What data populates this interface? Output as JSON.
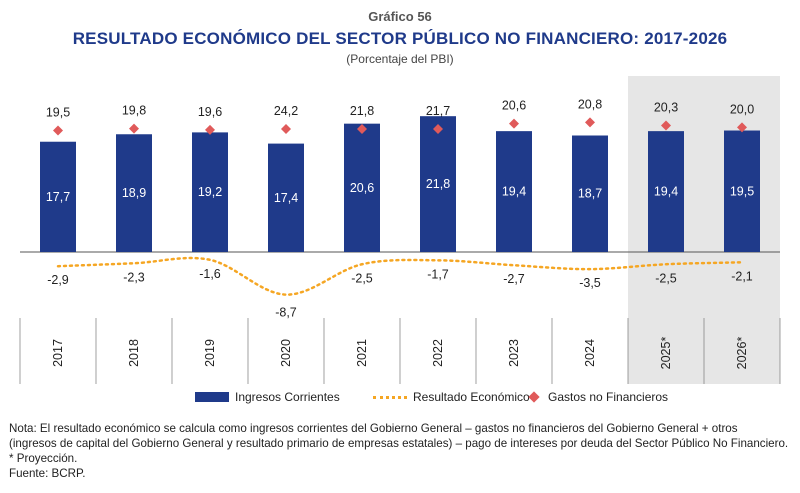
{
  "header": {
    "kicker": "Gráfico 56",
    "title": "RESULTADO ECONÓMICO DEL SECTOR PÚBLICO NO FINANCIERO: 2017-2026",
    "subtitle": "(Porcentaje del PBI)"
  },
  "legend": {
    "bars": "Ingresos Corrientes",
    "line": "Resultado Económico",
    "diamonds": "Gastos no Financieros"
  },
  "notes": [
    "Nota: El resultado económico se calcula como ingresos corrientes del Gobierno General – gastos no financieros del Gobierno General + otros",
    "(ingresos de capital del Gobierno General y resultado primario de empresas estatales) – pago de intereses por deuda del Sector Público No Financiero.",
    "* Proyección.",
    "Fuente: BCRP."
  ],
  "colors": {
    "bars": "#1f3a8a",
    "line": "#f5a623",
    "diamonds": "#e05a5a",
    "projection_shade": "#e6e6e6"
  },
  "chart_data": {
    "type": "bar",
    "categories": [
      "2017",
      "2018",
      "2019",
      "2020",
      "2021",
      "2022",
      "2023",
      "2024",
      "2025*",
      "2026*"
    ],
    "projected_categories": [
      "2025*",
      "2026*"
    ],
    "series": [
      {
        "name": "Ingresos Corrientes",
        "type": "bar",
        "values": [
          17.7,
          18.9,
          19.2,
          17.4,
          20.6,
          21.8,
          19.4,
          18.7,
          19.4,
          19.5
        ],
        "labels": [
          "17,7",
          "18,9",
          "19,2",
          "17,4",
          "20,6",
          "21,8",
          "19,4",
          "18,7",
          "19,4",
          "19,5"
        ]
      },
      {
        "name": "Gastos no Financieros",
        "type": "scatter",
        "values": [
          19.5,
          19.8,
          19.6,
          24.2,
          21.8,
          21.7,
          20.6,
          20.8,
          20.3,
          20.0
        ],
        "labels": [
          "19,5",
          "19,8",
          "19,6",
          "24,2",
          "21,8",
          "21,7",
          "20,6",
          "20,8",
          "20,3",
          "20,0"
        ]
      },
      {
        "name": "Resultado Económico",
        "type": "line",
        "values": [
          -2.9,
          -2.3,
          -1.6,
          -8.7,
          -2.5,
          -1.7,
          -2.7,
          -3.5,
          -2.5,
          -2.1
        ],
        "labels": [
          "-2,9",
          "-2,3",
          "-1,6",
          "-8,7",
          "-2,5",
          "-1,7",
          "-2,7",
          "-3,5",
          "-2,5",
          "-2,1"
        ]
      }
    ]
  }
}
